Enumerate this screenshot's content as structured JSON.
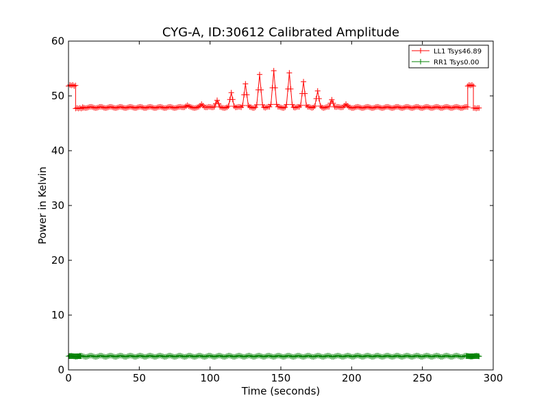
{
  "chart_data": {
    "type": "line",
    "title": "CYG-A, ID:30612 Calibrated Amplitude",
    "xlabel": "Time (seconds)",
    "ylabel": "Power in Kelvin",
    "xlim": [
      0,
      300
    ],
    "ylim": [
      0,
      60
    ],
    "xticks": [
      0,
      50,
      100,
      150,
      200,
      250,
      300
    ],
    "yticks": [
      0,
      10,
      20,
      30,
      40,
      50,
      60
    ],
    "grid": false,
    "legend_position": "top-right",
    "marker": "+",
    "series": [
      {
        "name": "LL1 Tsys46.89",
        "color": "#ff0000",
        "baseline": 47.9,
        "segments": [
          {
            "x": [
              0,
              1,
              2,
              3,
              4,
              5
            ],
            "y": [
              51.8,
              52.0,
              51.9,
              52.0,
              51.8,
              51.9
            ]
          },
          {
            "x": [
              5,
              6,
              7,
              8,
              9,
              10
            ],
            "y": [
              47.7,
              47.8,
              47.7,
              47.8,
              47.7,
              47.8
            ]
          },
          {
            "x": [
              282,
              283,
              284,
              285,
              286
            ],
            "y": [
              51.8,
              52.0,
              51.9,
              52.0,
              51.8
            ]
          },
          {
            "x": [
              286,
              287,
              288,
              289,
              290
            ],
            "y": [
              47.8,
              47.8,
              47.7,
              47.8,
              47.8
            ]
          }
        ],
        "peaks": [
          {
            "x": 84,
            "y": 48.3
          },
          {
            "x": 94,
            "y": 48.5
          },
          {
            "x": 105,
            "y": 49.2
          },
          {
            "x": 115,
            "y": 50.6
          },
          {
            "x": 125,
            "y": 52.2
          },
          {
            "x": 135,
            "y": 53.9
          },
          {
            "x": 145,
            "y": 54.6
          },
          {
            "x": 156,
            "y": 54.2
          },
          {
            "x": 166,
            "y": 52.6
          },
          {
            "x": 176,
            "y": 50.9
          },
          {
            "x": 186,
            "y": 49.3
          },
          {
            "x": 196,
            "y": 48.5
          }
        ],
        "main_range": [
          10,
          282
        ]
      },
      {
        "name": "RR1 Tsys0.00",
        "color": "#008000",
        "baseline": 2.5,
        "segments": [],
        "peaks": [],
        "main_range": [
          0,
          290
        ]
      }
    ]
  }
}
